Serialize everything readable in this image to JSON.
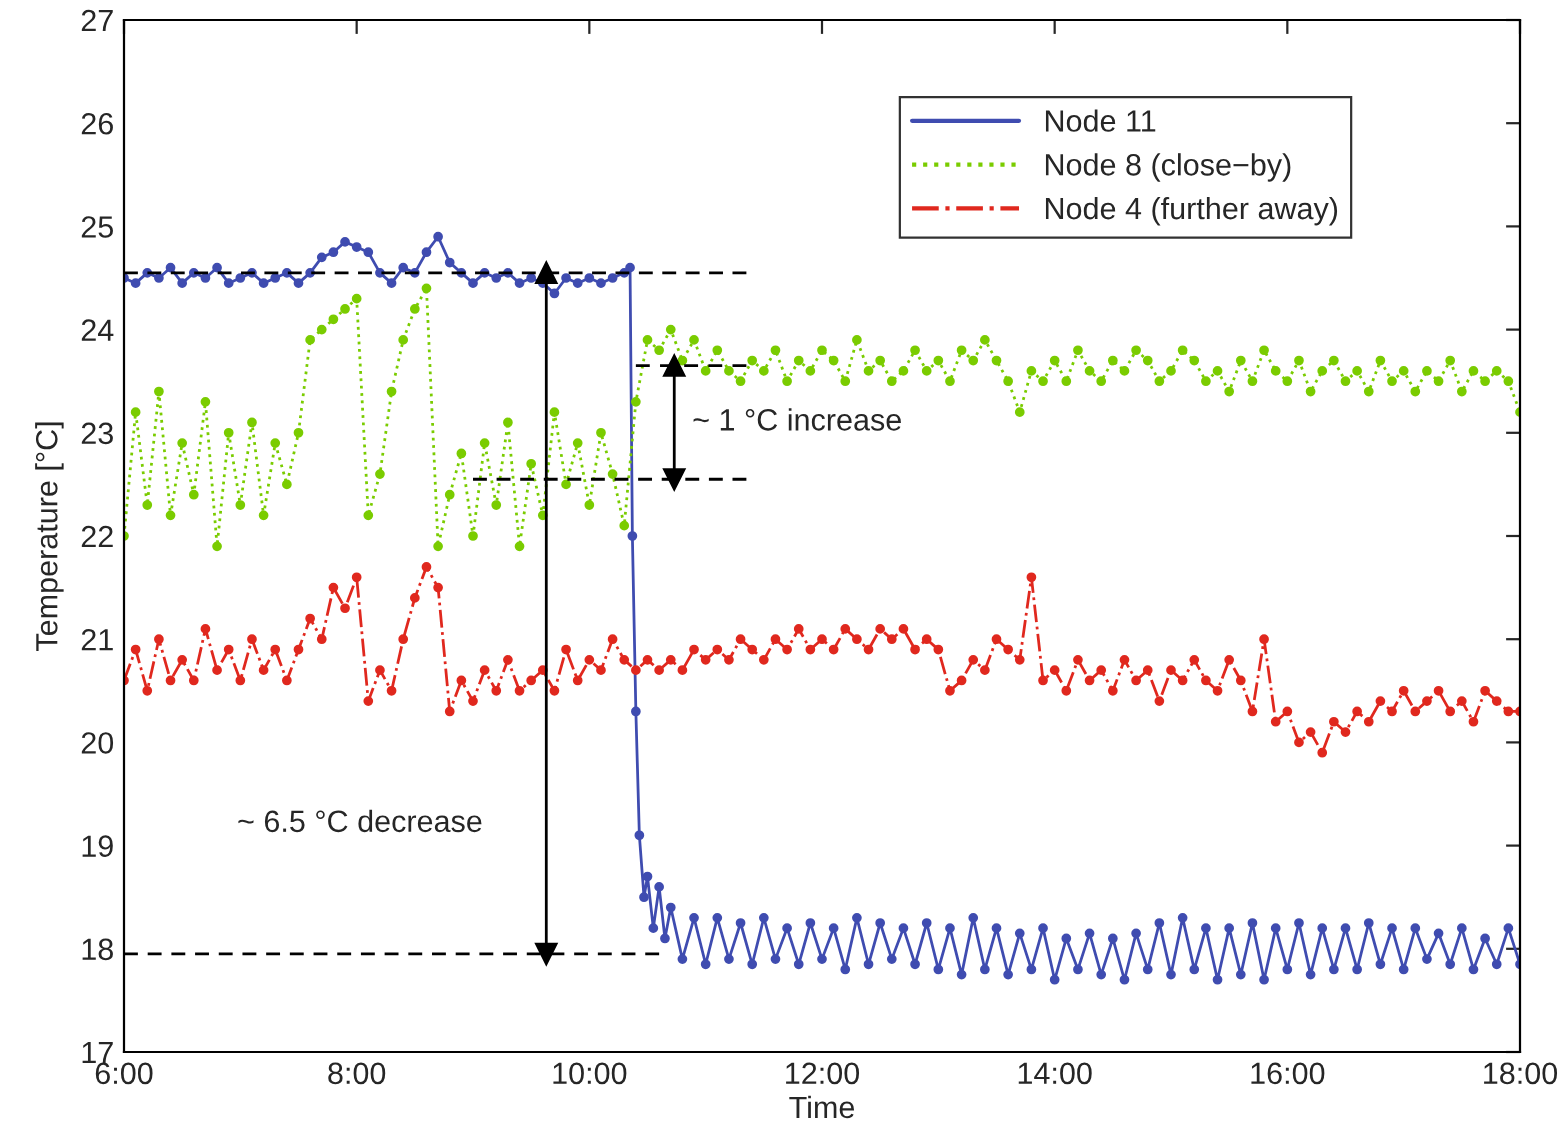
{
  "chart_data": {
    "type": "line",
    "xlabel": "Time",
    "ylabel": "Temperature [°C]",
    "xlim": [
      6,
      18
    ],
    "ylim": [
      17,
      27
    ],
    "xticks": [
      {
        "value": 6,
        "label": "6:00"
      },
      {
        "value": 8,
        "label": "8:00"
      },
      {
        "value": 10,
        "label": "10:00"
      },
      {
        "value": 12,
        "label": "12:00"
      },
      {
        "value": 14,
        "label": "14:00"
      },
      {
        "value": 16,
        "label": "16:00"
      },
      {
        "value": 18,
        "label": "18:00"
      }
    ],
    "yticks": [
      17,
      18,
      19,
      20,
      21,
      22,
      23,
      24,
      25,
      26,
      27
    ],
    "grid": false,
    "legend": "top right",
    "x": [
      6.0,
      6.1,
      6.2,
      6.3,
      6.4,
      6.5,
      6.6,
      6.7,
      6.8,
      6.9,
      7.0,
      7.1,
      7.2,
      7.3,
      7.4,
      7.5,
      7.6,
      7.7,
      7.8,
      7.9,
      8.0,
      8.1,
      8.2,
      8.3,
      8.4,
      8.5,
      8.6,
      8.7,
      8.8,
      8.9,
      9.0,
      9.1,
      9.2,
      9.3,
      9.4,
      9.5,
      9.6,
      9.7,
      9.8,
      9.9,
      10.0,
      10.1,
      10.2,
      10.3,
      10.4,
      10.5,
      10.6,
      10.7,
      10.8,
      10.9,
      11.0,
      11.1,
      11.2,
      11.3,
      11.4,
      11.5,
      11.6,
      11.7,
      11.8,
      11.9,
      12.0,
      12.1,
      12.2,
      12.3,
      12.4,
      12.5,
      12.6,
      12.7,
      12.8,
      12.9,
      13.0,
      13.1,
      13.2,
      13.3,
      13.4,
      13.5,
      13.6,
      13.7,
      13.8,
      13.9,
      14.0,
      14.1,
      14.2,
      14.3,
      14.4,
      14.5,
      14.6,
      14.7,
      14.8,
      14.9,
      15.0,
      15.1,
      15.2,
      15.3,
      15.4,
      15.5,
      15.6,
      15.7,
      15.8,
      15.9,
      16.0,
      16.1,
      16.2,
      16.3,
      16.4,
      16.5,
      16.6,
      16.7,
      16.8,
      16.9,
      17.0,
      17.1,
      17.2,
      17.3,
      17.4,
      17.5,
      17.6,
      17.7,
      17.8,
      17.9,
      18.0
    ],
    "series": [
      {
        "name": "Node 11",
        "color": "#3f4cb0",
        "line_style": "solid",
        "marker": "circle",
        "x": [
          6.0,
          6.1,
          6.2,
          6.3,
          6.4,
          6.5,
          6.6,
          6.7,
          6.8,
          6.9,
          7.0,
          7.1,
          7.2,
          7.3,
          7.4,
          7.5,
          7.6,
          7.7,
          7.8,
          7.9,
          8.0,
          8.1,
          8.2,
          8.3,
          8.4,
          8.5,
          8.6,
          8.7,
          8.8,
          8.9,
          9.0,
          9.1,
          9.2,
          9.3,
          9.4,
          9.5,
          9.6,
          9.7,
          9.8,
          9.9,
          10.0,
          10.1,
          10.2,
          10.3,
          10.35,
          10.37,
          10.4,
          10.43,
          10.47,
          10.5,
          10.55,
          10.6,
          10.65,
          10.7,
          10.8,
          10.9,
          11.0,
          11.1,
          11.2,
          11.3,
          11.4,
          11.5,
          11.6,
          11.7,
          11.8,
          11.9,
          12.0,
          12.1,
          12.2,
          12.3,
          12.4,
          12.5,
          12.6,
          12.7,
          12.8,
          12.9,
          13.0,
          13.1,
          13.2,
          13.3,
          13.4,
          13.5,
          13.6,
          13.7,
          13.8,
          13.9,
          14.0,
          14.1,
          14.2,
          14.3,
          14.4,
          14.5,
          14.6,
          14.7,
          14.8,
          14.9,
          15.0,
          15.1,
          15.2,
          15.3,
          15.4,
          15.5,
          15.6,
          15.7,
          15.8,
          15.9,
          16.0,
          16.1,
          16.2,
          16.3,
          16.4,
          16.5,
          16.6,
          16.7,
          16.8,
          16.9,
          17.0,
          17.1,
          17.2,
          17.3,
          17.4,
          17.5,
          17.6,
          17.7,
          17.8,
          17.9,
          18.0
        ],
        "values": [
          24.5,
          24.45,
          24.55,
          24.5,
          24.6,
          24.45,
          24.55,
          24.5,
          24.6,
          24.45,
          24.5,
          24.55,
          24.45,
          24.5,
          24.55,
          24.45,
          24.55,
          24.7,
          24.75,
          24.85,
          24.8,
          24.75,
          24.55,
          24.45,
          24.6,
          24.55,
          24.75,
          24.9,
          24.65,
          24.55,
          24.45,
          24.55,
          24.5,
          24.55,
          24.45,
          24.5,
          24.45,
          24.35,
          24.5,
          24.45,
          24.5,
          24.45,
          24.5,
          24.55,
          24.6,
          22.0,
          20.3,
          19.1,
          18.5,
          18.7,
          18.2,
          18.6,
          18.1,
          18.4,
          17.9,
          18.3,
          17.85,
          18.3,
          17.9,
          18.25,
          17.85,
          18.3,
          17.9,
          18.2,
          17.85,
          18.25,
          17.9,
          18.2,
          17.8,
          18.3,
          17.85,
          18.25,
          17.9,
          18.2,
          17.85,
          18.25,
          17.8,
          18.2,
          17.75,
          18.3,
          17.8,
          18.2,
          17.75,
          18.15,
          17.8,
          18.2,
          17.7,
          18.1,
          17.8,
          18.15,
          17.75,
          18.1,
          17.7,
          18.15,
          17.8,
          18.25,
          17.75,
          18.3,
          17.8,
          18.2,
          17.7,
          18.2,
          17.75,
          18.25,
          17.7,
          18.2,
          17.8,
          18.25,
          17.75,
          18.2,
          17.8,
          18.2,
          17.8,
          18.25,
          17.85,
          18.2,
          17.8,
          18.2,
          17.9,
          18.15,
          17.85,
          18.2,
          17.8,
          18.1,
          17.85,
          18.2,
          17.85
        ]
      },
      {
        "name": "Node 8 (close−by)",
        "color": "#7acc00",
        "line_style": "dotted",
        "marker": "circle",
        "values": [
          22.0,
          23.2,
          22.3,
          23.4,
          22.2,
          22.9,
          22.4,
          23.3,
          21.9,
          23.0,
          22.3,
          23.1,
          22.2,
          22.9,
          22.5,
          23.0,
          23.9,
          24.0,
          24.1,
          24.2,
          24.3,
          22.2,
          22.6,
          23.4,
          23.9,
          24.2,
          24.4,
          21.9,
          22.4,
          22.8,
          22.0,
          22.9,
          22.3,
          23.1,
          21.9,
          22.7,
          22.2,
          23.2,
          22.5,
          22.9,
          22.3,
          23.0,
          22.6,
          22.1,
          23.3,
          23.9,
          23.8,
          24.0,
          23.7,
          23.9,
          23.6,
          23.8,
          23.6,
          23.5,
          23.7,
          23.6,
          23.8,
          23.5,
          23.7,
          23.6,
          23.8,
          23.7,
          23.5,
          23.9,
          23.6,
          23.7,
          23.5,
          23.6,
          23.8,
          23.6,
          23.7,
          23.5,
          23.8,
          23.7,
          23.9,
          23.7,
          23.5,
          23.2,
          23.6,
          23.5,
          23.7,
          23.5,
          23.8,
          23.6,
          23.5,
          23.7,
          23.6,
          23.8,
          23.7,
          23.5,
          23.6,
          23.8,
          23.7,
          23.5,
          23.6,
          23.4,
          23.7,
          23.5,
          23.8,
          23.6,
          23.5,
          23.7,
          23.4,
          23.6,
          23.7,
          23.5,
          23.6,
          23.4,
          23.7,
          23.5,
          23.6,
          23.4,
          23.6,
          23.5,
          23.7,
          23.4,
          23.6,
          23.5,
          23.6,
          23.5,
          23.2
        ]
      },
      {
        "name": "Node 4 (further away)",
        "color": "#e0281e",
        "line_style": "dashdot",
        "marker": "circle",
        "values": [
          20.6,
          20.9,
          20.5,
          21.0,
          20.6,
          20.8,
          20.6,
          21.1,
          20.7,
          20.9,
          20.6,
          21.0,
          20.7,
          20.9,
          20.6,
          20.9,
          21.2,
          21.0,
          21.5,
          21.3,
          21.6,
          20.4,
          20.7,
          20.5,
          21.0,
          21.4,
          21.7,
          21.5,
          20.3,
          20.6,
          20.4,
          20.7,
          20.5,
          20.8,
          20.5,
          20.6,
          20.7,
          20.5,
          20.9,
          20.6,
          20.8,
          20.7,
          21.0,
          20.8,
          20.7,
          20.8,
          20.7,
          20.8,
          20.7,
          20.9,
          20.8,
          20.9,
          20.8,
          21.0,
          20.9,
          20.8,
          21.0,
          20.9,
          21.1,
          20.9,
          21.0,
          20.9,
          21.1,
          21.0,
          20.9,
          21.1,
          21.0,
          21.1,
          20.9,
          21.0,
          20.9,
          20.5,
          20.6,
          20.8,
          20.7,
          21.0,
          20.9,
          20.8,
          21.6,
          20.6,
          20.7,
          20.5,
          20.8,
          20.6,
          20.7,
          20.5,
          20.8,
          20.6,
          20.7,
          20.4,
          20.7,
          20.6,
          20.8,
          20.6,
          20.5,
          20.8,
          20.6,
          20.3,
          21.0,
          20.2,
          20.3,
          20.0,
          20.1,
          19.9,
          20.2,
          20.1,
          20.3,
          20.2,
          20.4,
          20.3,
          20.5,
          20.3,
          20.4,
          20.5,
          20.3,
          20.4,
          20.2,
          20.5,
          20.4,
          20.3,
          20.3
        ]
      },
      {
        "color": "#000000",
        "line_style": "dashed",
        "marker": "none",
        "x": [
          6.0,
          11.35
        ],
        "values": [
          24.55,
          24.55
        ]
      },
      {
        "color": "#000000",
        "line_style": "dashed",
        "marker": "none",
        "x": [
          10.4,
          11.35
        ],
        "values": [
          23.65,
          23.65
        ]
      },
      {
        "color": "#000000",
        "line_style": "dashed",
        "marker": "none",
        "x": [
          9.0,
          11.35
        ],
        "values": [
          22.55,
          22.55
        ]
      },
      {
        "color": "#000000",
        "line_style": "dashed",
        "marker": "none",
        "x": [
          6.0,
          10.6
        ],
        "values": [
          17.95,
          17.95
        ]
      },
      {
        "color": "#000000",
        "line_style": "solid",
        "marker": "triangle",
        "x": [
          9.63,
          9.63
        ],
        "values": [
          24.55,
          17.95
        ]
      },
      {
        "color": "#000000",
        "line_style": "solid",
        "marker": "triangle",
        "x": [
          10.73,
          10.73
        ],
        "values": [
          23.65,
          22.55
        ]
      }
    ],
    "annotations": [
      "~ 6.5 °C decrease",
      "~ 1 °C increase"
    ]
  }
}
